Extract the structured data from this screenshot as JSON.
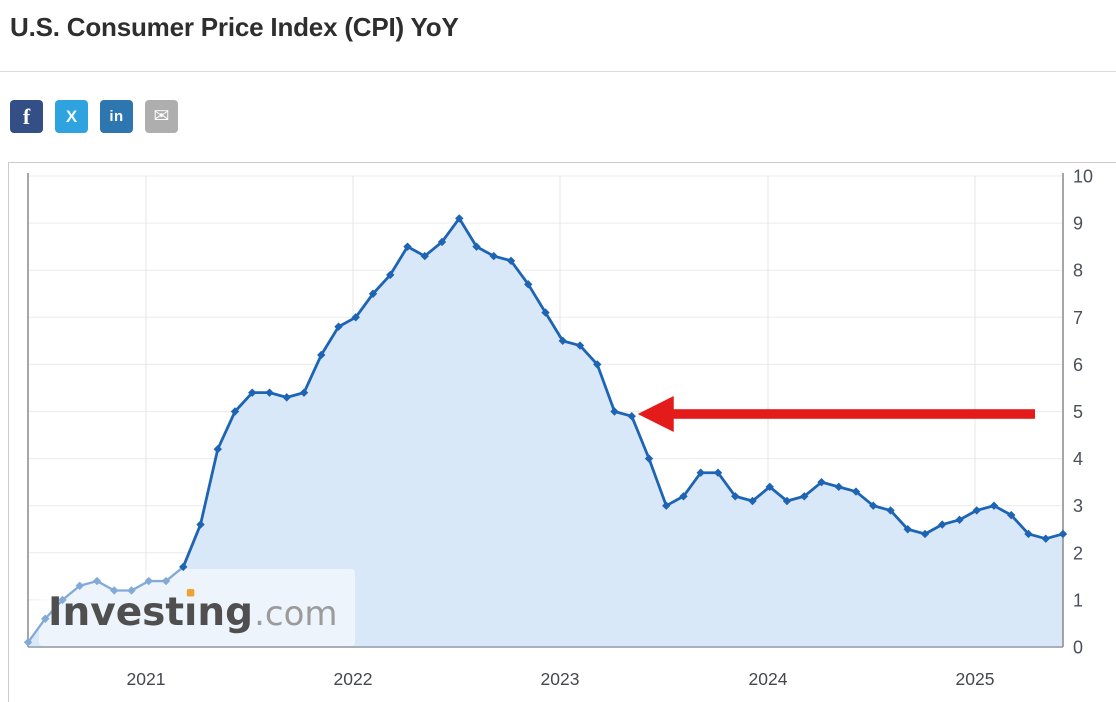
{
  "page": {
    "title": "U.S. Consumer Price Index (CPI) YoY"
  },
  "toolbar": {
    "share_buttons": [
      {
        "name": "facebook",
        "glyph": "f",
        "bg": "#344e86"
      },
      {
        "name": "x",
        "glyph": "X",
        "bg": "#2fa3df"
      },
      {
        "name": "linkedin",
        "glyph": "in",
        "bg": "#2d76b0"
      },
      {
        "name": "email",
        "glyph": "✉",
        "bg": "#aeaeae"
      }
    ]
  },
  "watermark": {
    "brand_prefix": "Invest",
    "brand_dotless_i": "ı",
    "brand_suffix": "ng",
    "domain": ".com",
    "text_color": "#4f4f4f",
    "domain_color": "#9b9b9b",
    "dot_color": "#eea236"
  },
  "chart_data": {
    "type": "area",
    "title": "U.S. Consumer Price Index (CPI) YoY",
    "unit": "% year-over-year",
    "x": [
      "2020-05",
      "2020-06",
      "2020-07",
      "2020-08",
      "2020-09",
      "2020-10",
      "2020-11",
      "2020-12",
      "2021-01",
      "2021-02",
      "2021-03",
      "2021-04",
      "2021-05",
      "2021-06",
      "2021-07",
      "2021-08",
      "2021-09",
      "2021-10",
      "2021-11",
      "2021-12",
      "2022-01",
      "2022-02",
      "2022-03",
      "2022-04",
      "2022-05",
      "2022-06",
      "2022-07",
      "2022-08",
      "2022-09",
      "2022-10",
      "2022-11",
      "2022-12",
      "2023-01",
      "2023-02",
      "2023-03",
      "2023-04",
      "2023-05",
      "2023-06",
      "2023-07",
      "2023-08",
      "2023-09",
      "2023-10",
      "2023-11",
      "2023-12",
      "2024-01",
      "2024-02",
      "2024-03",
      "2024-04",
      "2024-05",
      "2024-06",
      "2024-07",
      "2024-08",
      "2024-09",
      "2024-10",
      "2024-11",
      "2024-12",
      "2025-01",
      "2025-02",
      "2025-03",
      "2025-04",
      "2025-05"
    ],
    "values": [
      0.1,
      0.6,
      1.0,
      1.3,
      1.4,
      1.2,
      1.2,
      1.4,
      1.4,
      1.7,
      2.6,
      4.2,
      5.0,
      5.4,
      5.4,
      5.3,
      5.4,
      6.2,
      6.8,
      7.0,
      7.5,
      7.9,
      8.5,
      8.3,
      8.6,
      9.1,
      8.5,
      8.3,
      8.2,
      7.7,
      7.1,
      6.5,
      6.4,
      6.0,
      5.0,
      4.9,
      4.0,
      3.0,
      3.2,
      3.7,
      3.7,
      3.2,
      3.1,
      3.4,
      3.1,
      3.2,
      3.5,
      3.4,
      3.3,
      3.0,
      2.9,
      2.5,
      2.4,
      2.6,
      2.7,
      2.9,
      3.0,
      2.8,
      2.4,
      2.3,
      2.4
    ],
    "ylim": [
      0,
      10
    ],
    "y_ticks": [
      0,
      1,
      2,
      3,
      4,
      5,
      6,
      7,
      8,
      9,
      10
    ],
    "x_tick_labels": [
      "2021",
      "2022",
      "2023",
      "2024",
      "2025"
    ],
    "y_axis_position": "right",
    "grid": true,
    "legend": "none",
    "line_color": "#1e64b4",
    "faded_segment_color": "#82aad7",
    "faded_until_index": 9,
    "fill_color": "#d9e8f8",
    "marker": "diamond",
    "annotation": {
      "shape": "arrow-left",
      "color": "#e31b1b",
      "target_x": "2023-04",
      "target_value": 5.0,
      "note": "red arrow pointing at the 5% level (Mar/Apr 2023)"
    }
  }
}
